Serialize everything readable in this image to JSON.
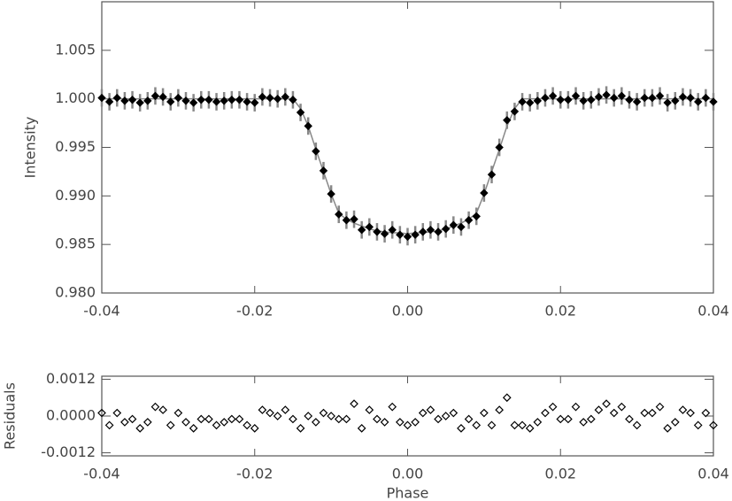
{
  "chart_data": [
    {
      "type": "scatter",
      "ylabel": "Intensity",
      "x": [
        -0.04,
        -0.039,
        -0.038,
        -0.037,
        -0.036,
        -0.035,
        -0.034,
        -0.033,
        -0.032,
        -0.031,
        -0.03,
        -0.029,
        -0.028,
        -0.027,
        -0.026,
        -0.025,
        -0.024,
        -0.023,
        -0.022,
        -0.021,
        -0.02,
        -0.019,
        -0.018,
        -0.017,
        -0.016,
        -0.015,
        -0.014,
        -0.013,
        -0.012,
        -0.011,
        -0.01,
        -0.009,
        -0.008,
        -0.007,
        -0.006,
        -0.005,
        -0.004,
        -0.003,
        -0.002,
        -0.001,
        0,
        0.001,
        0.002,
        0.003,
        0.004,
        0.005,
        0.006,
        0.007,
        0.008,
        0.009,
        0.01,
        0.011,
        0.012,
        0.013,
        0.014,
        0.015,
        0.016,
        0.017,
        0.018,
        0.019,
        0.02,
        0.021,
        0.022,
        0.023,
        0.024,
        0.025,
        0.026,
        0.027,
        0.028,
        0.029,
        0.03,
        0.031,
        0.032,
        0.033,
        0.034,
        0.035,
        0.036,
        0.037,
        0.038,
        0.039,
        0.04
      ],
      "series": [
        {
          "color": "#888888",
          "line": true,
          "values": [
            1,
            1,
            1,
            1,
            1,
            1,
            1,
            1,
            1,
            1,
            1,
            1,
            1,
            1,
            1,
            1,
            1,
            1,
            1,
            1,
            1,
            1,
            1,
            1,
            1,
            1,
            0.999,
            0.9972,
            0.9948,
            0.9925,
            0.9902,
            0.9882,
            0.9876,
            0.9872,
            0.9869,
            0.9866,
            0.9864,
            0.9863,
            0.9862,
            0.9862,
            0.9861,
            0.9862,
            0.9862,
            0.9863,
            0.9864,
            0.9866,
            0.9869,
            0.9872,
            0.9876,
            0.9882,
            0.9902,
            0.9925,
            0.9948,
            0.9972,
            0.999,
            1,
            1,
            1,
            1,
            1,
            1,
            1,
            1,
            1,
            1,
            1,
            1,
            1,
            1,
            1,
            1,
            1,
            1,
            1,
            1,
            1,
            1,
            1,
            1,
            1,
            1
          ]
        },
        {
          "color": "#000000",
          "marker": "diamond-filled",
          "error": 0.0009,
          "error_color": "#888888",
          "values": [
            1.0001,
            0.9997,
            1.0001,
            0.9998,
            0.9999,
            0.9996,
            0.9998,
            1.0003,
            1.0002,
            0.9997,
            1.0001,
            0.9998,
            0.9996,
            0.9999,
            0.9999,
            0.9997,
            0.9998,
            0.9999,
            0.9999,
            0.9997,
            0.9996,
            1.0002,
            1.0001,
            1.0,
            1.0002,
            0.9999,
            0.9986,
            0.9972,
            0.9946,
            0.9926,
            0.9902,
            0.9881,
            0.9875,
            0.9876,
            0.9865,
            0.9868,
            0.9863,
            0.9861,
            0.9865,
            0.986,
            0.9858,
            0.986,
            0.9863,
            0.9865,
            0.9863,
            0.9866,
            0.987,
            0.9868,
            0.9875,
            0.9879,
            0.9903,
            0.9922,
            0.995,
            0.9978,
            0.9987,
            0.9997,
            0.9996,
            0.9998,
            1.0001,
            1.0003,
            0.9999,
            0.9999,
            1.0003,
            0.9998,
            0.9999,
            1.0002,
            1.0004,
            1.0001,
            1.0003,
            0.9999,
            0.9997,
            1.0001,
            1.0001,
            1.0003,
            0.9996,
            0.9998,
            1.0002,
            1.0001,
            0.9997,
            1.0001,
            0.9997
          ]
        }
      ],
      "xlim": [
        -0.04,
        0.04
      ],
      "xticks": [
        -0.04,
        -0.02,
        {
          "value": 0,
          "label": "0.00"
        },
        0.02,
        0.04
      ],
      "ylim": [
        0.98,
        1.01
      ],
      "yticks": [
        {
          "value": 0.98,
          "label": "0.980"
        },
        0.985,
        {
          "value": 0.99,
          "label": "0.990"
        },
        0.995,
        {
          "value": 1,
          "label": "1.000"
        },
        1.005
      ]
    },
    {
      "type": "scatter",
      "ylabel": "Residuals",
      "xlabel": "Phase",
      "x": [
        -0.04,
        -0.039,
        -0.038,
        -0.037,
        -0.036,
        -0.035,
        -0.034,
        -0.033,
        -0.032,
        -0.031,
        -0.03,
        -0.029,
        -0.028,
        -0.027,
        -0.026,
        -0.025,
        -0.024,
        -0.023,
        -0.022,
        -0.021,
        -0.02,
        -0.019,
        -0.018,
        -0.017,
        -0.016,
        -0.015,
        -0.014,
        -0.013,
        -0.012,
        -0.011,
        -0.01,
        -0.009,
        -0.008,
        -0.007,
        -0.006,
        -0.005,
        -0.004,
        -0.003,
        -0.002,
        -0.001,
        0,
        0.001,
        0.002,
        0.003,
        0.004,
        0.005,
        0.006,
        0.007,
        0.008,
        0.009,
        0.01,
        0.011,
        0.012,
        0.013,
        0.014,
        0.015,
        0.016,
        0.017,
        0.018,
        0.019,
        0.02,
        0.021,
        0.022,
        0.023,
        0.024,
        0.025,
        0.026,
        0.027,
        0.028,
        0.029,
        0.03,
        0.031,
        0.032,
        0.033,
        0.034,
        0.035,
        0.036,
        0.037,
        0.038,
        0.039,
        0.04
      ],
      "series": [
        {
          "color": "#000000",
          "marker": "diamond-open",
          "values": [
            0.0001,
            -0.0003,
            0.0001,
            -0.0002,
            -0.0001,
            -0.0004,
            -0.0002,
            0.0003,
            0.0002,
            -0.0003,
            0.0001,
            -0.0002,
            -0.0004,
            -0.0001,
            -0.0001,
            -0.0003,
            -0.0002,
            -0.0001,
            -0.0001,
            -0.0003,
            -0.0004,
            0.0002,
            0.0001,
            0,
            0.0002,
            -0.0001,
            -0.0004,
            0,
            -0.0002,
            0.0001,
            0,
            -0.0001,
            -0.0001,
            0.0004,
            -0.0004,
            0.0002,
            -0.0001,
            -0.0002,
            0.0003,
            -0.0002,
            -0.0003,
            -0.0002,
            0.0001,
            0.0002,
            -0.0001,
            0,
            0.0001,
            -0.0004,
            -0.0001,
            -0.0003,
            0.0001,
            -0.0003,
            0.0002,
            0.0006,
            -0.0003,
            -0.0003,
            -0.0004,
            -0.0002,
            0.0001,
            0.0003,
            -0.0001,
            -0.0001,
            0.0003,
            -0.0002,
            -0.0001,
            0.0002,
            0.0004,
            0.0001,
            0.0003,
            -0.0001,
            -0.0003,
            0.0001,
            0.0001,
            0.0003,
            -0.0004,
            -0.0002,
            0.0002,
            0.0001,
            -0.0003,
            0.0001,
            -0.0003
          ]
        }
      ],
      "xlim": [
        -0.04,
        0.04
      ],
      "xticks": [
        -0.04,
        -0.02,
        {
          "value": 0,
          "label": "0.00"
        },
        0.02,
        0.04
      ],
      "ylim": [
        -0.0013,
        0.0013
      ],
      "yticks": [
        {
          "value": -0.0012,
          "label": "-0.0012"
        },
        {
          "value": 0,
          "label": "0.0000"
        },
        {
          "value": 0.0012,
          "label": "0.0012"
        }
      ]
    }
  ]
}
